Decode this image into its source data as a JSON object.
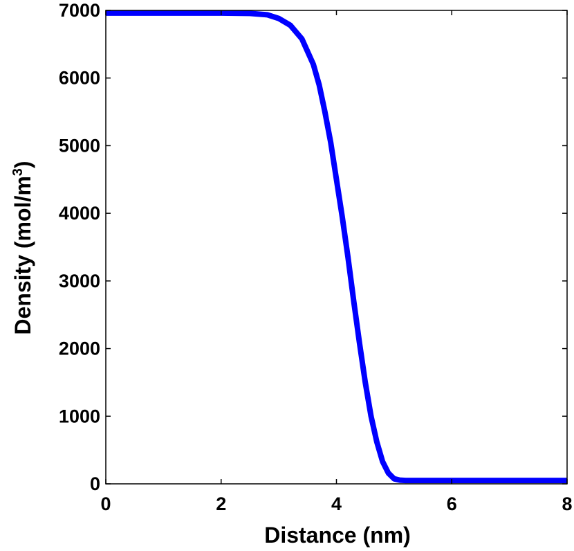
{
  "chart_data": {
    "type": "line",
    "title": "",
    "xlabel": "Distance (nm)",
    "ylabel_main": "Density (mol/m",
    "ylabel_sup": "3",
    "ylabel_close": ")",
    "xlim": [
      0,
      8
    ],
    "ylim": [
      0,
      7000
    ],
    "xticks": [
      0,
      2,
      4,
      6,
      8
    ],
    "xtick_labels": [
      "0",
      "2",
      "4",
      "6",
      "8"
    ],
    "yticks": [
      0,
      1000,
      2000,
      3000,
      4000,
      5000,
      6000,
      7000
    ],
    "ytick_labels": [
      "0",
      "1000",
      "2000",
      "3000",
      "4000",
      "5000",
      "6000",
      "7000"
    ],
    "grid": false,
    "series": [
      {
        "color": "#0000ff",
        "x": [
          0,
          0.5,
          1.0,
          1.5,
          2.0,
          2.5,
          2.8,
          3.0,
          3.2,
          3.4,
          3.6,
          3.7,
          3.8,
          3.9,
          4.0,
          4.1,
          4.2,
          4.3,
          4.4,
          4.5,
          4.6,
          4.7,
          4.8,
          4.9,
          5.0,
          5.1,
          5.2,
          5.4,
          5.6,
          6.0,
          7.0,
          8.0
        ],
        "y": [
          6960,
          6960,
          6960,
          6960,
          6960,
          6955,
          6935,
          6880,
          6780,
          6580,
          6200,
          5900,
          5500,
          5050,
          4500,
          3950,
          3350,
          2700,
          2080,
          1500,
          1000,
          620,
          330,
          160,
          75,
          55,
          50,
          50,
          50,
          50,
          50,
          50
        ]
      }
    ]
  }
}
